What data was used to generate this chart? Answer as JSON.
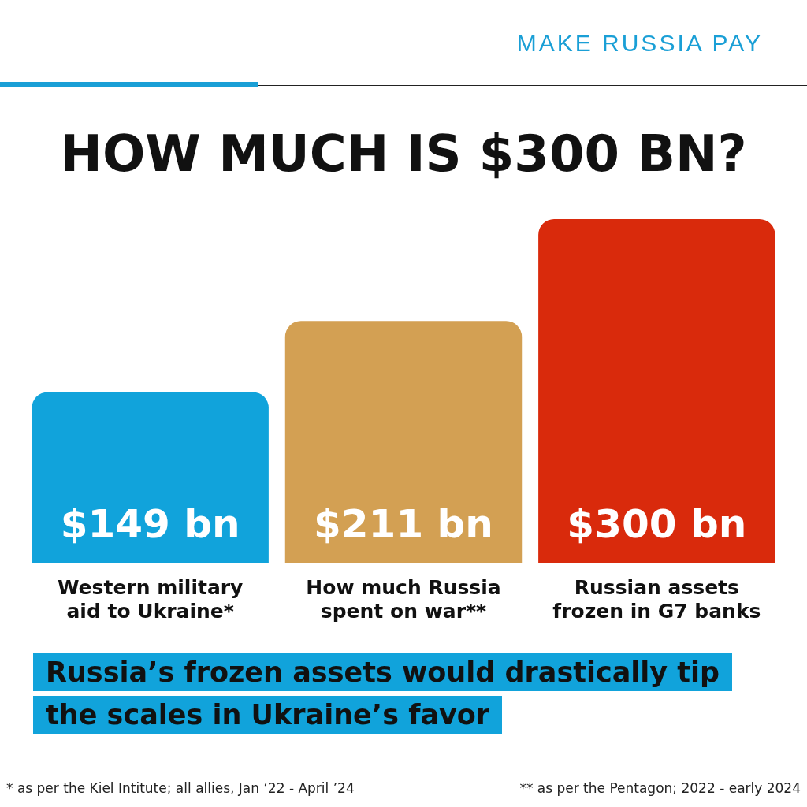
{
  "chart_data": {
    "type": "bar",
    "title": "HOW MUCH IS $300 BN?",
    "subtitle": "MAKE RUSSIA PAY",
    "categories": [
      "Western military aid to Ukraine*",
      "How much Russia spent on war**",
      "Russian assets frozen in G7 banks"
    ],
    "values": [
      149,
      211,
      300
    ],
    "colors": [
      "#11a3db",
      "#d3a053",
      "#d92a0c"
    ],
    "value_labels": [
      "$149 bn",
      "$211 bn",
      "$300 bn"
    ],
    "annotations": [
      "Russia’s frozen assets would drastically tip the scales in Ukraine’s favor",
      "* as per the Kiel Intitute; all allies, Jan ‘22 - April ’24",
      "** as per the Pentagon; 2022 - early 2024"
    ]
  }
}
